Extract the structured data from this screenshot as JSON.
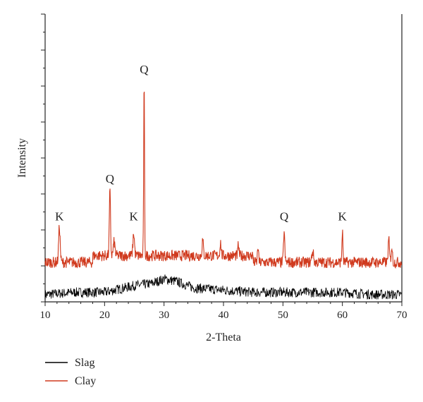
{
  "chart_data": {
    "type": "line",
    "title": "",
    "xlabel": "2-Theta",
    "ylabel": "Intensity",
    "xlim": [
      10,
      70
    ],
    "x_ticks": [
      10,
      20,
      30,
      40,
      50,
      60,
      70
    ],
    "y_ticks_labeled": false,
    "grid": false,
    "legend_position": "below-left",
    "series": [
      {
        "name": "Slag",
        "color": "#000000",
        "points": [
          [
            10,
            0.02
          ],
          [
            15,
            0.03
          ],
          [
            20,
            0.03
          ],
          [
            25,
            0.06
          ],
          [
            28,
            0.07
          ],
          [
            30,
            0.09
          ],
          [
            32,
            0.08
          ],
          [
            35,
            0.05
          ],
          [
            40,
            0.04
          ],
          [
            45,
            0.03
          ],
          [
            50,
            0.03
          ],
          [
            55,
            0.03
          ],
          [
            60,
            0.03
          ],
          [
            65,
            0.02
          ],
          [
            70,
            0.02
          ]
        ]
      },
      {
        "name": "Clay",
        "color": "#d03a1e",
        "points": [
          [
            10,
            0.18
          ],
          [
            12.4,
            0.34
          ],
          [
            15,
            0.2
          ],
          [
            20,
            0.22
          ],
          [
            20.9,
            0.51
          ],
          [
            22,
            0.24
          ],
          [
            25,
            0.26
          ],
          [
            26.65,
            1.0
          ],
          [
            28,
            0.24
          ],
          [
            30,
            0.21
          ],
          [
            35,
            0.23
          ],
          [
            40,
            0.23
          ],
          [
            45,
            0.22
          ],
          [
            50.2,
            0.34
          ],
          [
            55,
            0.22
          ],
          [
            60,
            0.34
          ],
          [
            65,
            0.21
          ],
          [
            68,
            0.3
          ],
          [
            70,
            0.19
          ]
        ]
      }
    ],
    "annotations": [
      {
        "text": "K",
        "x": 12.4,
        "y": 0.34
      },
      {
        "text": "Q",
        "x": 20.9,
        "y": 0.51
      },
      {
        "text": "K",
        "x": 24.9,
        "y": 0.34
      },
      {
        "text": "Q",
        "x": 26.65,
        "y": 1.0
      },
      {
        "text": "Q",
        "x": 50.2,
        "y": 0.34
      },
      {
        "text": "K",
        "x": 60.0,
        "y": 0.34
      }
    ]
  }
}
